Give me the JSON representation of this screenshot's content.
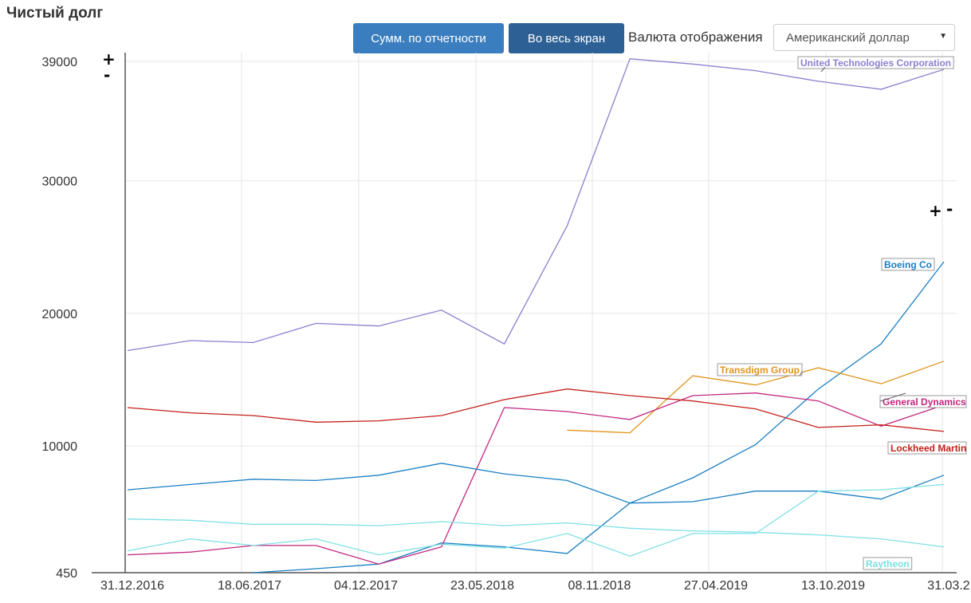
{
  "title": "Чистый долг",
  "toolbar": {
    "sum_button": "Сумм. по отчетности",
    "fullscreen_button": "Во весь экран",
    "currency_label": "Валюта отображения",
    "currency_value": "Американский доллар"
  },
  "zoom": {
    "plus": "+",
    "minus": "-"
  },
  "chart_data": {
    "type": "line",
    "title": "Чистый долг",
    "y_ticks": [
      450,
      10000,
      20000,
      30000,
      39000
    ],
    "x_ticks": [
      "31.12.2016",
      "18.06.2017",
      "04.12.2017",
      "23.05.2018",
      "08.11.2018",
      "27.04.2019",
      "13.10.2019",
      "31.03.2"
    ],
    "x": [
      "31.12.2016",
      "31.03.2017",
      "30.06.2017",
      "30.09.2017",
      "31.12.2017",
      "31.03.2018",
      "30.06.2018",
      "30.09.2018",
      "31.12.2018",
      "31.03.2019",
      "30.06.2019",
      "30.09.2019",
      "31.12.2019",
      "31.03.2020"
    ],
    "ylim": [
      450,
      39000
    ],
    "grid": true,
    "series": [
      {
        "name": "United Technologies Corporation",
        "color": "#8a7fd0",
        "values": [
          17200,
          17950,
          17800,
          19250,
          19050,
          20250,
          17700,
          26600,
          39200,
          38800,
          38300,
          37500,
          36900,
          38400
        ]
      },
      {
        "name": "Boeing Co",
        "color": "#1a7fc4",
        "values": [
          null,
          null,
          450,
          750,
          1100,
          2700,
          2400,
          1900,
          5700,
          7600,
          10100,
          14300,
          17700,
          23900
        ]
      },
      {
        "name": "Transdigm Group",
        "color": "#e0941f",
        "values": [
          null,
          null,
          null,
          null,
          null,
          null,
          null,
          11200,
          11000,
          15300,
          14600,
          15900,
          14700,
          16400
        ]
      },
      {
        "name": "General Dynamics",
        "color": "#c2267f",
        "values": [
          1800,
          2000,
          2500,
          2500,
          1100,
          2400,
          12900,
          12600,
          12000,
          13800,
          14000,
          13400,
          11500,
          13100
        ]
      },
      {
        "name": "Lockheed Martin",
        "color": "#c4201b",
        "values": [
          12900,
          12500,
          12300,
          11800,
          11900,
          12300,
          13500,
          14300,
          13800,
          13400,
          12800,
          11400,
          11600,
          11100
        ]
      },
      {
        "name": "",
        "color": "#1a7fc4",
        "values": [
          6700,
          7100,
          7500,
          7400,
          7800,
          8700,
          7900,
          7400,
          5700,
          5800,
          6600,
          6600,
          6000,
          7800
        ]
      },
      {
        "name": "Raytheon",
        "color": "#7fe0e4",
        "values": [
          4500,
          4400,
          4100,
          4100,
          4000,
          4300,
          4000,
          4200,
          3800,
          3600,
          3500,
          3300,
          3000,
          2400
        ]
      },
      {
        "name": "",
        "color": "#7fe0e4",
        "values": [
          2100,
          3000,
          2500,
          3000,
          1800,
          2600,
          2300,
          3400,
          1700,
          3400,
          3400,
          6600,
          6700,
          7100
        ]
      }
    ]
  }
}
